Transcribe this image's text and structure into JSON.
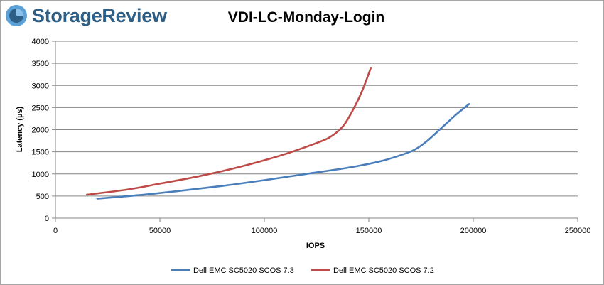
{
  "brand": {
    "name": "StorageReview"
  },
  "chart_data": {
    "type": "line",
    "title": "VDI-LC-Monday-Login",
    "xlabel": "IOPS",
    "ylabel": "Latency (µs)",
    "xlim": [
      0,
      250000
    ],
    "ylim": [
      0,
      4000
    ],
    "x_ticks": [
      0,
      50000,
      100000,
      150000,
      200000,
      250000
    ],
    "x_tick_labels": [
      "0",
      "50000",
      "100000",
      "150000",
      "200000",
      "250000"
    ],
    "y_ticks": [
      0,
      500,
      1000,
      1500,
      2000,
      2500,
      3000,
      3500,
      4000
    ],
    "y_tick_labels": [
      "0",
      "500",
      "1000",
      "1500",
      "2000",
      "2500",
      "3000",
      "3500",
      "4000"
    ],
    "grid": "horizontal",
    "legend_position": "bottom",
    "series": [
      {
        "name": "Dell EMC SC5020 SCOS 7.3",
        "color": "#4a7ebb",
        "points": [
          [
            20000,
            440
          ],
          [
            40000,
            520
          ],
          [
            60000,
            620
          ],
          [
            80000,
            730
          ],
          [
            100000,
            860
          ],
          [
            120000,
            1000
          ],
          [
            140000,
            1140
          ],
          [
            155000,
            1280
          ],
          [
            165000,
            1420
          ],
          [
            172000,
            1550
          ],
          [
            178000,
            1750
          ],
          [
            185000,
            2050
          ],
          [
            192000,
            2350
          ],
          [
            198000,
            2580
          ]
        ]
      },
      {
        "name": "Dell EMC SC5020 SCOS 7.2",
        "color": "#be4b48",
        "points": [
          [
            15000,
            530
          ],
          [
            35000,
            650
          ],
          [
            50000,
            780
          ],
          [
            70000,
            960
          ],
          [
            90000,
            1180
          ],
          [
            110000,
            1450
          ],
          [
            125000,
            1700
          ],
          [
            132000,
            1850
          ],
          [
            138000,
            2100
          ],
          [
            143000,
            2500
          ],
          [
            147000,
            2900
          ],
          [
            151000,
            3400
          ]
        ]
      }
    ]
  }
}
